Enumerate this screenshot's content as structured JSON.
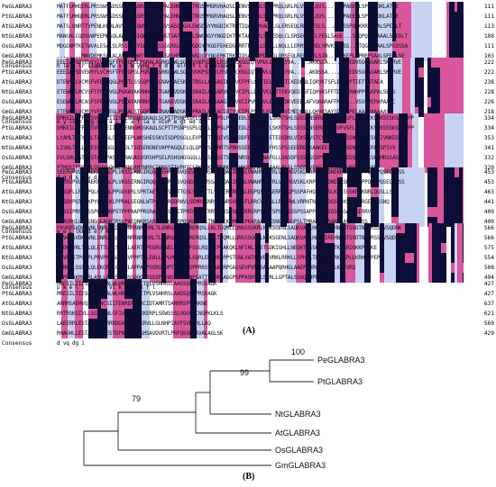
{
  "alignment": {
    "blocks": [
      {
        "names": [
          "PeGLABRA3",
          "PtGLABRA3",
          "AtGLABRA3",
          "NtGLABRA3",
          "OsGLABRA3",
          "GmGLABRA3",
          "Consensus"
        ],
        "seqs": [
          "MATFLMHQERLPRSSWSSDSSLLLPASRSTSPLQPALEHNLYLRTRGSPMGRVHAQSLKENVSNLGLSNSPRQLGRLRLVSLGLQVS....RQPAEELLSPEELDKLATRE",
          "MATFLMHQERLPRSSWSSDSSLLLPASRSTSPLQPALEHNLYLRTRGSPMGRVHAQSLKENVSNLGLSNSPRQLGRLRLVSLGLQVS....RQPAEELLSPEELDKLATRE",
          "MATG.QNRTTVPENLKKHLAVSVRNIQWSYGIFWSVSASQPGVLEWGDGYYNGDIKTRKTIQAAEVKADQLGLERSEQLRELYESLS...AGESSPQAKRRPAAALSPEDLT",
          "MANGRLCQDSVWPEEMKSQLALALRSIQWSYAIFWSTSATQPGVLSWGDGYYNGDIKTRKTAQRDVLSMDEDQLCLSRSEQLRELYESLSAGE...SGQPQPRQAAALSPEDLT",
          "MDGDNMTKETWVALESALSLRSIQWSYSLFWRLSSSGRSLLLTWGDGYYKGEFEHEDGQRRTNASLLSQSLLNQLLLERRSQLRELYMVKSASSS...TQGRAAAALSPEDSSA",
          "........MWVDEMKSQLALAVRSIQWSYAIFWSLSASHPGVLEWGDGYYNGEMKTRKTIQSAEMMPDQLGLQRSEQLRELYESLSIN....EKEPLAPRRPSAALSPEDLSE",
          "   h   le  l  lr sIqWsy  fw  s       l  W   yyng    r   q       d      r   elr lY  l          q   aalspedl   e"
        ],
        "nums": [
          "111",
          "111",
          "113",
          "108",
          "111",
          "103",
          ""
        ]
      },
      {
        "names": [
          "PeGLABRA3",
          "PtGLABRA3",
          "AtGLABRA3",
          "NtGLABRA3",
          "OsGLABRA3",
          "GmGLABRA3",
          "Consensus"
        ],
        "seqs": [
          "EEEIAVSDVEWYYLVCMSFTFGFGPGLPGRALASRKLIWLSGANVVKPSDSVLRSRSSCKSGIQTVMVLLPIEAYVA.....AKNSSA....PSLEDVSGGSGARLSKLRVE",
          "EEEIAVSDVEWYYLVCMSFTFGFGPGLPGRALASRKLIWLSGANVVKPSDSVLRSRSSCKSGIQTVMVLLPIEAYVA.....AKNSSA....PSLEDVSGGSGARLSKLRVE",
          "DTEWYFLVCMSFVFDIGQGLPGRTLSSGQPIWLCNAHRAESKVFTRSLLAKSASIKTVVCFPFLGGVIELGTTDTIKEDPNLIQRVKTSFLEAPDPTIETVGTAEA",
          "ETEWFYLMCVSFTFPPGVGLPGKAYAKRHHVWLTGANEVDSKIFSRAILAKSARVQTVVCIPLLDGVVELGTTEKVQEDIGFIQHVKSFFTDHHHRHHPPPLKPALSEHS",
          "ESEWFYLMCASFSFPPGVGLPGKAYARRRHVWLTGANEVDSKTFSRAILAKSAAGIQTVVCIPVMDGVLELGTTDKVEEDLAFVQHARAFFMDP...VSVLPEPAPAAAC",
          "ETEWFYLVCMSYVFGPGEGLPGRALSTGQPVWLTNAHYADSKVFPRAILAKSACIQTVVCIPLPSGVLELGTTDVIMEDLNLLQHVKSAYSDLLPPELAAAPAAAAAS",
          "  e y lvcm   f  g gpg    a l     wl  a       f      la s    vcvP      e  gt    ed      s                           "
        ],
        "nums": [
          "222",
          "222",
          "238",
          "228",
          "226",
          "218",
          ""
        ]
      },
      {
        "names": [
          "PeGLABRA3",
          "PtGLABRA3",
          "AtGLABRA3",
          "NtGLABRA3",
          "OsGLABRA3",
          "GmGLABRA3",
          "Consensus"
        ],
        "seqs": [
          "EMKEILTFFSKSVCGSEIIISPENNGHGSKAQLSCPTTPSNPSSPLQKRLSLPSLPEAKEDLSFDSLDFLSKRTSHLSSSSRNSERDSGKLVFVSFLSFVRIKSSKSSSKSPRSPP",
          "EMKEILTFFSKSVCGSEIIISPENNGHGSKAQLSCPTTPSNPSSPLQKRLSLPSLPEAKEDLSFDSLDFLSKRTSHLSSSSRNSERDSGKLVFVSFLSFVRIKSSKSSSKSPRSPP",
          "LYAMLTEEYHSLTAAMSLSPNTEEPLWKSHESSKVISDPDSGLLEVPIKTPTQIVSSVEDDFEEDSIPLETEDSDNLVIKSSVSTCSSSNSSSKSSNAKEKESGSIVNKES",
          "LISKLTSLLNRESVQVSGLNAGDLTSQSENGNEVAPPAGQLELQLQPNPSRPRRTSPRHSSEELSSIADFHSSPSSEEERERKAAKEEIPLERDSDNSSGTCRPSSPIVV",
          "EVLSHLVSTVTSTAQAPASTSANAGASVGRSHPSELRSHSHGGGQLLSRSASSSTSSSSNRSLPHLNNAFGLLDASDFSSSGSGSPSLNLGSPVEDQVDLLLSHAMRSSASA",
          "PTMQSIFSMFMLQSVVSQHAEHRNSRRSNRRCIKNSSTIVPPTCSPKFEKLSRKRKSQLHHQQKFAPAAAAALPLFLSSEEEVEGGISLRVAAALKSTDGFGAP",
          "                      d                        g    d s     s               v                           d"
        ],
        "nums": [
          "334",
          "334",
          "353",
          "341",
          "332",
          "320",
          ""
        ]
      },
      {
        "names": [
          "PeGLABRA3",
          "PtGLABRA3",
          "AtGLABRA3",
          "NtGLABRA3",
          "OsGLABRA3",
          "GmGLABRA3",
          "Consensus"
        ],
        "seqs": [
          "SEERVPVLTDAEKRNIALPLVKSSIRNGIRQQGHEHPSGSVQGEAQEKMSSAAAQASIPEGLVWAHNLNFRLVSAHGVSKLKRPFSSEDNEKRSRSQGSPPQSAPQSEQRQSS",
          "SEERVPVLTDAEKRNIALPLVKSSIRNGIRQQGHEHPSGSVQGEAQEKMSSAAAQASIPEGLVWAHNLNFRLVSAHGVSKLKRPFSSEDNEKRSRSQGSPPQSAPQSEQRQSS",
          "VYSQFLLRGSPQLHLPQLPPGGSERLSPRTAETGSPSPATTGSLSRGETTLVVSERKRWDSLEQPQSRSSERRSAQPSSPAFHQNSSVSLKPKSSSKRPKNRLQGSLLSE",
          "QHSQVPQTAAKPYQAPLKLPPRALSEGNLWTPQQQERQQRNVLSEMRVKNRSNSNRSVLCLFLRRCVSESLLRFLRWLVRRNTNVERRDGSKSKSPEVSRGEQGSSNQ",
          "GRSSIPRSRKSSPQGLQNPSTPPPAAPPRSRAGAARSSQCTPRTGSTLTRRSRNKSSSKSKRRSRPSTTTSPSLSSSSPSSAPPARGGSGSGRGASSSERRVLH",
          "EWASRKLLAPSNGGLAGKTRSLPAEQNKRSARPKLVKSTRPQSKQEANLTNRSAEKQPKKCPKARAAGRKSNGSPSGPSLTMRAAEPLRANGIAVDREESS",
          "  e        w                            L                        lkk                   d   e  r   k   f  l"
        ],
        "nums": [
          "453",
          "453",
          "463",
          "441",
          "409",
          "400",
          ""
        ]
      },
      {
        "names": [
          "PeGLABRA3",
          "PtGLABRA3",
          "AtGLABRA3",
          "NtGLABRA3",
          "OsGLABRA3",
          "GmGLABRA3",
          "Consensus"
        ],
        "seqs": [
          "PAVKRSVDKIVNLSNRLLLLAIDNRRNRMKRLTLQNRQLTFLGREMQSLLKLTEQMLLQNSSSGKRLNQKSGENLSAQKVAHLHQTEIREHNSRTSVDTNQMRSSQVSQDNK",
          "PAVKRSVDKIVNLSNRLLLLAIDNRRNRMKRLTLQNRQLTFLGREMQSLLKLTEQMLLQNSSSGKRLNQKSGENLSAQKVAHLHQTEIREHNSRTSVDTNQMRSSQVSQDNK",
          "SADKEVRLTLLQLETTLQLSEKLLAERTRPEGRVLAELKASEDFSVLRQIAIPQAKQKLNFIHLIVSTSDKIGHLLNEQKTSSSKDIRGSTKSKRIGKKPGRKE",
          "PPVRVSTPGFPLPRVPMISLSNSVPPPTKLEALLVPLMKKQKELSQRLEKIVKLPPSTGNLVATRVVEEVRKLRRHLLSPHELTLRLHPPRKAKPLLKRHRFPEP",
          "DLNKKLSSSNLQLEKGRQLGLLELAPPAKPSSRSPDPTRHASDSPPRRSVAAAERPGASSEVPVNVSAAAAPQRHGLAAEPLRRQLAIEQLKHFVRQ",
          "RRPRLAKMCLRLASLLAARSSGGSGQQGRSSSSPEVASEVEELNPSATTSRHRRAGGPSPPASHSSLSPRLLGPTALSSGQGHPPKLPTL",
          " p   k  e l   i y     le   e  vl                      k                    r     lr   k  f   l"
        ],
        "nums": [
          "566",
          "566",
          "575",
          "554",
          "508",
          "494",
          ""
        ]
      },
      {
        "names": [
          "PeGLABRA3",
          "PtGLABRA3",
          "AtGLABRA3",
          "NtGLABRA3",
          "OsGLABRA3",
          "GmGLABRA3",
          "Consensus"
        ],
        "seqs": [
          "MRESILTIEVASNMNMALWLHRVLLTLETPLVSHHRSLAASSQSKPRSVAGK",
          "MRESILTIEVASNMNMALWLHRVLLTLETPLVSHHRSLAASSQSKPRSVAGK",
          "ARRMSAEHVQILIKNCSIITENRERVFRCIDTAMRTSARRRSPVDAKNE",
          "RRTRSKSIVLLSGTKSNLGFIVCAHNVKKERPLSEWSSSLVGGVWCNGPKLKLS",
          "LAEERRLESTAVASFHRRRDGAPPIVAKRVLLGLNHPIAYFSVRKHLLAQ",
          "RHAGHLLESTAINSTHESTDPNLVLYMSHSAVDVRTLPRFQSGPAAVALAGLSK",
          "     d  vq    dg   i"
        ],
        "nums": [
          "427",
          "427",
          "637",
          "621",
          "569",
          "429",
          ""
        ]
      }
    ]
  },
  "panel_a_label": "(A)",
  "panel_b_label": "(B)",
  "tree": {
    "taxa": [
      "PeGLABRA3",
      "PtGLABRA3",
      "NtGLABRA3",
      "AtGLABRA3",
      "OsGLABRA3",
      "GmGLABRA3"
    ],
    "bootstrap": [
      "100",
      "99",
      "79"
    ]
  },
  "colors": {
    "identical": "#0d0d3a",
    "high": "#d9569b",
    "low": "#c8d2f2"
  }
}
